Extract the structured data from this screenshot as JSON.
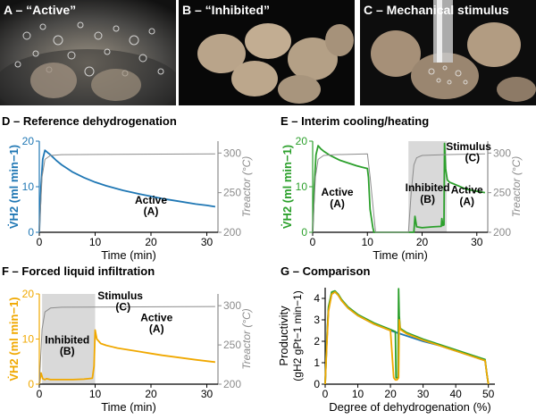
{
  "photos": [
    {
      "label": "A – “Active”"
    },
    {
      "label": "B – “Inhibited”"
    },
    {
      "label": "C – Mechanical stimulus"
    }
  ],
  "colors": {
    "blue": "#1f77b4",
    "green": "#2ca02c",
    "orange": "#f0a800",
    "gray": "#8c8c8c",
    "shade": "#d9d9d9"
  },
  "chart_data": [
    {
      "id": "D",
      "type": "line",
      "title": "D – Reference dehydrogenation",
      "xlabel": "Time (min)",
      "ylabel_left": "V̇H2 (ml min−1)",
      "ylabel_right": "Treactor (°C)",
      "xlim": [
        0,
        32
      ],
      "ylim_left": [
        0,
        20
      ],
      "ylim_right": [
        200,
        315
      ],
      "xticks": [
        0,
        10,
        20,
        30
      ],
      "yticks_left": [
        0,
        10,
        20
      ],
      "yticks_right": [
        200,
        250,
        300
      ],
      "series": [
        {
          "axis": "left",
          "color": "#1f77b4",
          "x": [
            0,
            0.3,
            0.6,
            1.0,
            1.5,
            2,
            3,
            4,
            5,
            6,
            8,
            10,
            12,
            15,
            18,
            20,
            22,
            25,
            28,
            30,
            31.5
          ],
          "y": [
            0,
            10,
            16,
            18,
            17.5,
            17.0,
            15.8,
            14.8,
            14.0,
            13.2,
            12.0,
            11.0,
            10.2,
            9.2,
            8.4,
            7.9,
            7.4,
            6.8,
            6.2,
            5.9,
            5.6
          ]
        },
        {
          "axis": "right",
          "color": "#8c8c8c",
          "x": [
            0,
            0.5,
            1,
            2,
            4,
            31.5
          ],
          "y": [
            200,
            270,
            292,
            297,
            298,
            299
          ]
        }
      ],
      "annotations": [
        {
          "text": "Active",
          "x": 20,
          "y": 6.3
        },
        {
          "text": "(A)",
          "x": 20,
          "y": 3.8
        }
      ]
    },
    {
      "id": "E",
      "type": "line",
      "title": "E – Interim cooling/heating",
      "xlabel": "Time (min)",
      "ylabel_left": "V̇H2 (ml min−1)",
      "ylabel_right": "Treactor (°C)",
      "xlim": [
        0,
        32
      ],
      "ylim_left": [
        0,
        20
      ],
      "ylim_right": [
        200,
        315
      ],
      "xticks": [
        0,
        10,
        20,
        30
      ],
      "yticks_left": [
        0,
        10,
        20
      ],
      "yticks_right": [
        200,
        250,
        300
      ],
      "shaded": [
        [
          17.5,
          24.5
        ]
      ],
      "series": [
        {
          "axis": "left",
          "color": "#2ca02c",
          "x": [
            0,
            0.3,
            0.6,
            1.0,
            1.5,
            2,
            3,
            4,
            5,
            6,
            7,
            8,
            9,
            10,
            10.2,
            10.5,
            11,
            11.2,
            18.5,
            18.7,
            19,
            20,
            22,
            23.5,
            23.6,
            23.8,
            24,
            24.1,
            24.3,
            24.6,
            25,
            26,
            28,
            30,
            31.5
          ],
          "y": [
            0,
            10,
            17,
            19,
            18.3,
            17.8,
            17.0,
            16.4,
            15.8,
            15.4,
            15.0,
            14.6,
            14.3,
            14.0,
            12,
            5,
            1,
            0,
            0,
            3.5,
            1.2,
            1.0,
            1.2,
            1.3,
            3,
            1.5,
            1.6,
            19.5,
            14,
            11.5,
            11.0,
            10.5,
            9.5,
            9.0,
            8.7
          ]
        },
        {
          "axis": "right",
          "color": "#8c8c8c",
          "x": [
            0,
            0.5,
            1,
            2,
            4,
            10,
            10.5,
            11.5,
            17.5,
            18,
            18.5,
            19,
            20,
            24,
            31.5
          ],
          "y": [
            200,
            270,
            292,
            297,
            298,
            299,
            270,
            200,
            200,
            250,
            285,
            294,
            297,
            298,
            299
          ]
        }
      ],
      "annotations": [
        {
          "text": "Active",
          "x": 4.5,
          "y": 8
        },
        {
          "text": "(A)",
          "x": 4.5,
          "y": 5.5
        },
        {
          "text": "Inhibited",
          "x": 21,
          "y": 9
        },
        {
          "text": "(B)",
          "x": 21,
          "y": 6.5
        },
        {
          "text": "Active",
          "x": 28.2,
          "y": 8.5
        },
        {
          "text": "(A)",
          "x": 28.2,
          "y": 6
        },
        {
          "text": "Stimulus",
          "x": 28.5,
          "y": 18
        },
        {
          "text": "(C)",
          "x": 29.2,
          "y": 15.6
        }
      ]
    },
    {
      "id": "F",
      "type": "line",
      "title": "F – Forced liquid infiltration",
      "xlabel": "Time (min)",
      "ylabel_left": "V̇H2 (ml min−1)",
      "ylabel_right": "Treactor (°C)",
      "xlim": [
        0,
        32
      ],
      "ylim_left": [
        0,
        20
      ],
      "ylim_right": [
        200,
        315
      ],
      "xticks": [
        0,
        10,
        20,
        30
      ],
      "yticks_left": [
        0,
        10,
        20
      ],
      "yticks_right": [
        200,
        250,
        300
      ],
      "shaded": [
        [
          0.5,
          10
        ]
      ],
      "series": [
        {
          "axis": "left",
          "color": "#f0a800",
          "x": [
            0,
            0.3,
            0.6,
            1,
            1.3,
            2,
            4,
            6,
            8,
            9.5,
            9.8,
            10,
            10.3,
            11,
            12,
            14,
            16,
            18,
            20,
            22,
            25,
            28,
            30,
            31.5
          ],
          "y": [
            0,
            2.5,
            1.2,
            1.0,
            1.2,
            1.0,
            1.0,
            1.0,
            1.1,
            1.3,
            4,
            12,
            10,
            9.0,
            8.6,
            8.0,
            7.6,
            7.2,
            6.8,
            6.4,
            5.9,
            5.4,
            5.1,
            4.9
          ]
        },
        {
          "axis": "right",
          "color": "#8c8c8c",
          "x": [
            0,
            0.5,
            1,
            2,
            4,
            31.5
          ],
          "y": [
            200,
            270,
            292,
            297,
            298,
            299
          ]
        }
      ],
      "annotations": [
        {
          "text": "Inhibited",
          "x": 5,
          "y": 9
        },
        {
          "text": "(B)",
          "x": 5,
          "y": 6.5
        },
        {
          "text": "Active",
          "x": 21,
          "y": 14
        },
        {
          "text": "(A)",
          "x": 21,
          "y": 11.5
        },
        {
          "text": "Stimulus",
          "x": 14.5,
          "y": 18.8
        },
        {
          "text": "(C)",
          "x": 15,
          "y": 16.3
        }
      ]
    },
    {
      "id": "G",
      "type": "line",
      "title": "G – Comparison",
      "xlabel": "Degree of dehydrogenation (%)",
      "ylabel_line1": "Productivity",
      "ylabel_line2": "(gH2 gPt−1 min−1)",
      "xlim": [
        0,
        52
      ],
      "ylim": [
        0,
        4.5
      ],
      "xticks": [
        0,
        10,
        20,
        30,
        40,
        50
      ],
      "yticks": [
        0,
        1,
        2,
        3,
        4
      ],
      "series": [
        {
          "color": "#1f77b4",
          "x": [
            0,
            0.5,
            1,
            2,
            3,
            4,
            5,
            7,
            10,
            15,
            20,
            25,
            30,
            35,
            40,
            45,
            49,
            49.5,
            50
          ],
          "y": [
            0,
            2.0,
            3.5,
            4.2,
            4.3,
            4.15,
            3.9,
            3.55,
            3.2,
            2.8,
            2.5,
            2.25,
            2.0,
            1.8,
            1.55,
            1.3,
            1.1,
            0.5,
            0
          ]
        },
        {
          "color": "#2ca02c",
          "x": [
            0,
            0.5,
            1,
            2,
            3,
            4,
            5,
            7,
            10,
            15,
            20,
            21.5,
            21.7,
            21.9,
            22.3,
            22.5,
            22.7,
            23,
            25,
            30,
            35,
            40,
            45,
            49,
            49.5,
            50
          ],
          "y": [
            0,
            2.0,
            3.6,
            4.3,
            4.35,
            4.2,
            3.95,
            3.6,
            3.25,
            2.85,
            2.55,
            2.45,
            0.3,
            0.3,
            0.3,
            4.45,
            3.2,
            2.6,
            2.4,
            2.1,
            1.85,
            1.6,
            1.35,
            1.15,
            0.5,
            0
          ]
        },
        {
          "color": "#f0a800",
          "x": [
            0,
            0.5,
            1,
            2,
            3,
            4,
            5,
            7,
            10,
            15,
            20,
            21,
            21.5,
            22,
            22.5,
            22.7,
            23,
            25,
            30,
            35,
            40,
            45,
            49,
            49.5,
            50
          ],
          "y": [
            0,
            1.8,
            3.4,
            4.2,
            4.3,
            4.15,
            3.9,
            3.55,
            3.2,
            2.8,
            2.5,
            0.3,
            0.2,
            0.2,
            0.3,
            3.0,
            2.55,
            2.35,
            2.05,
            1.8,
            1.55,
            1.3,
            1.1,
            0.5,
            0
          ]
        }
      ]
    }
  ]
}
